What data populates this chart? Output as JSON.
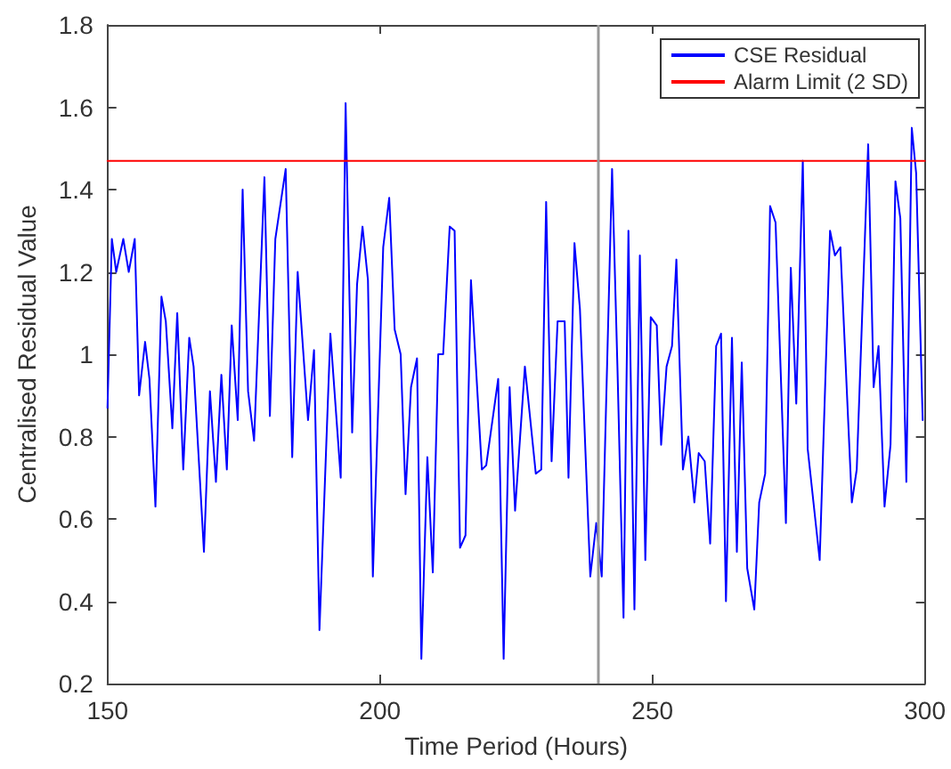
{
  "chart_data": {
    "type": "line",
    "xlabel": "Time Period (Hours)",
    "ylabel": "Centralised Residual Value",
    "xlim": [
      150,
      300
    ],
    "xticks": [
      150,
      200,
      250,
      300
    ],
    "ylim": [
      0.2,
      1.8
    ],
    "yticks": [
      0.2,
      0.4,
      0.6,
      0.8,
      1,
      1.2,
      1.4,
      1.6,
      1.8
    ],
    "grid": false,
    "legend": "top right",
    "ref_lines": [
      {
        "axis": "x",
        "value": 240,
        "color": "#999999"
      }
    ],
    "series": [
      {
        "name": "CSE Residual",
        "color": "#0000ff",
        "x": [
          150,
          150.8,
          151.6,
          152.9,
          153.9,
          155,
          155.8,
          156.9,
          157.7,
          158.8,
          159.9,
          160.7,
          161.9,
          162.8,
          163.9,
          165,
          165.8,
          167.7,
          168.8,
          169.9,
          170.9,
          171.9,
          172.8,
          173.9,
          174.8,
          175.8,
          176.9,
          178.8,
          179.8,
          180.8,
          182.7,
          183.9,
          184.9,
          186.8,
          187.9,
          188.9,
          190.9,
          192.8,
          193.7,
          194.9,
          195.8,
          196.8,
          197.8,
          198.7,
          200.6,
          201.7,
          202.7,
          203.8,
          204.7,
          205.7,
          206.8,
          207.6,
          208.7,
          209.7,
          210.7,
          211.6,
          212.8,
          213.7,
          214.7,
          215.7,
          216.7,
          218.7,
          219.5,
          221.7,
          222.7,
          223.8,
          224.8,
          226.6,
          228.6,
          229.6,
          230.5,
          231.5,
          232.6,
          233.9,
          234.6,
          235.7,
          236.7,
          238.6,
          239.7,
          240.7,
          242.6,
          243.6,
          244.7,
          245.6,
          246.7,
          247.7,
          248.7,
          249.7,
          250.8,
          251.6,
          252.6,
          253.6,
          254.4,
          255.6,
          256.6,
          257.7,
          258.5,
          259.6,
          260.6,
          261.7,
          262.6,
          263.5,
          264.6,
          265.5,
          266.4,
          267.4,
          268.7,
          269.6,
          270.7,
          271.6,
          272.6,
          274.5,
          275.4,
          276.4,
          277.6,
          278.5,
          280.7,
          282.6,
          283.5,
          284.5,
          286.6,
          287.5,
          289.6,
          290.6,
          291.5,
          292.6,
          293.7,
          294.6,
          295.5,
          296.6,
          297.6,
          298.4,
          299.6
        ],
        "values": [
          0.87,
          1.28,
          1.2,
          1.28,
          1.2,
          1.28,
          0.9,
          1.03,
          0.94,
          0.63,
          1.14,
          1.08,
          0.82,
          1.1,
          0.72,
          1.04,
          0.97,
          0.52,
          0.91,
          0.69,
          0.95,
          0.72,
          1.07,
          0.84,
          1.4,
          0.91,
          0.79,
          1.43,
          0.85,
          1.28,
          1.45,
          0.75,
          1.2,
          0.84,
          1.01,
          0.33,
          1.05,
          0.7,
          1.61,
          0.81,
          1.17,
          1.31,
          1.18,
          0.46,
          1.26,
          1.38,
          1.06,
          1,
          0.66,
          0.92,
          0.99,
          0.26,
          0.75,
          0.47,
          1,
          1,
          1.31,
          1.3,
          0.53,
          0.56,
          1.18,
          0.72,
          0.73,
          0.94,
          0.26,
          0.92,
          0.62,
          0.97,
          0.71,
          0.72,
          1.37,
          0.74,
          1.08,
          1.08,
          0.7,
          1.27,
          1.11,
          0.46,
          0.59,
          0.46,
          1.45,
          0.96,
          0.36,
          1.3,
          0.38,
          1.24,
          0.5,
          1.09,
          1.07,
          0.78,
          0.97,
          1.02,
          1.23,
          0.72,
          0.8,
          0.64,
          0.76,
          0.74,
          0.54,
          1.02,
          1.05,
          0.4,
          1.04,
          0.52,
          0.98,
          0.48,
          0.38,
          0.64,
          0.71,
          1.36,
          1.32,
          0.59,
          1.21,
          0.88,
          1.47,
          0.77,
          0.5,
          1.3,
          1.24,
          1.26,
          0.64,
          0.72,
          1.51,
          0.92,
          1.02,
          0.63,
          0.78,
          1.42,
          1.33,
          0.69,
          1.55,
          1.44,
          0.84
        ]
      },
      {
        "name": "Alarm Limit (2 SD)",
        "color": "#ff0000",
        "x": [
          150,
          300
        ],
        "values": [
          1.47,
          1.47
        ]
      }
    ]
  }
}
